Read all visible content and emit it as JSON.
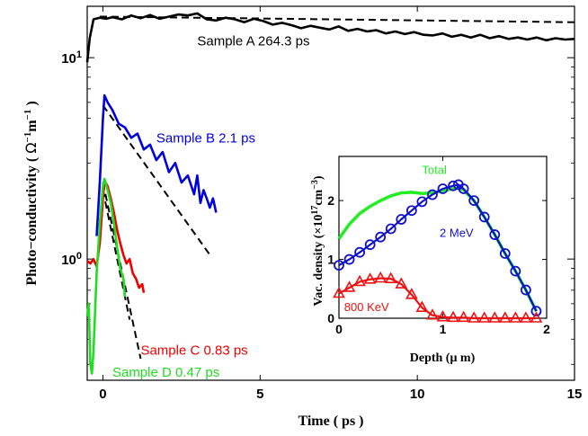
{
  "chart_data": [
    {
      "type": "line",
      "xlabel": "Time ( ps )",
      "ylabel": "Photo-conductivity ( Ω⁻¹m⁻¹ )",
      "ylabel_parts": {
        "pre": "Photo−conductivity ( ",
        "omega": "Ω",
        "sup1": "−1",
        "m": "m",
        "sup2": "−1",
        "post": " )"
      },
      "y_scale": "log",
      "xlim": [
        -0.5,
        15
      ],
      "ylim": [
        0.25,
        18
      ],
      "x_ticks": [
        {
          "value": 0,
          "label": "0"
        },
        {
          "value": 5,
          "label": "5"
        },
        {
          "value": 10,
          "label": "10"
        },
        {
          "value": 15,
          "label": "15"
        }
      ],
      "y_ticks": [
        {
          "value": 1,
          "base": "10",
          "exp": "0"
        },
        {
          "value": 10,
          "base": "10",
          "exp": "1"
        }
      ],
      "series": [
        {
          "color": "#000000",
          "data": [
            [
              -0.5,
              9.5
            ],
            [
              -0.42,
              12.5
            ],
            [
              -0.3,
              15.5
            ],
            [
              -0.1,
              15.8
            ],
            [
              0.1,
              15.6
            ],
            [
              0.3,
              15.9
            ],
            [
              0.6,
              15.5
            ],
            [
              0.9,
              16.2
            ],
            [
              1.2,
              15.7
            ],
            [
              1.5,
              16.3
            ],
            [
              1.8,
              15.6
            ],
            [
              2.1,
              16.0
            ],
            [
              2.4,
              16.4
            ],
            [
              2.7,
              16.2
            ],
            [
              3.0,
              16.6
            ],
            [
              3.3,
              15.5
            ],
            [
              3.6,
              15.3
            ],
            [
              3.9,
              15.8
            ],
            [
              4.2,
              15.5
            ],
            [
              4.5,
              15.0
            ],
            [
              4.8,
              15.6
            ],
            [
              5.1,
              15.2
            ],
            [
              5.4,
              14.6
            ],
            [
              5.7,
              14.9
            ],
            [
              6.0,
              14.5
            ],
            [
              6.3,
              14.0
            ],
            [
              6.6,
              14.4
            ],
            [
              6.9,
              14.1
            ],
            [
              7.2,
              13.8
            ],
            [
              7.5,
              14.3
            ],
            [
              7.8,
              13.6
            ],
            [
              8.1,
              13.9
            ],
            [
              8.4,
              13.5
            ],
            [
              8.7,
              13.7
            ],
            [
              9.0,
              13.2
            ],
            [
              9.3,
              13.5
            ],
            [
              9.6,
              13.1
            ],
            [
              9.9,
              13.4
            ],
            [
              10.2,
              13.0
            ],
            [
              10.5,
              12.9
            ],
            [
              10.8,
              13.2
            ],
            [
              11.1,
              12.7
            ],
            [
              11.4,
              13.0
            ],
            [
              11.7,
              12.6
            ],
            [
              12.0,
              13.0
            ],
            [
              12.3,
              12.5
            ],
            [
              12.6,
              12.8
            ],
            [
              12.9,
              12.4
            ],
            [
              13.2,
              12.6
            ],
            [
              13.5,
              12.3
            ],
            [
              13.8,
              12.6
            ],
            [
              14.1,
              12.2
            ],
            [
              14.4,
              12.5
            ],
            [
              14.7,
              12.3
            ],
            [
              15.0,
              12.4
            ]
          ],
          "fit": [
            [
              -0.1,
              16.0
            ],
            [
              15.0,
              15.0
            ]
          ],
          "annotation": "Sample A 264.3 ps",
          "label_pos": [
            3.0,
            11.5
          ]
        },
        {
          "color": "#0000dd",
          "data": [
            [
              -0.2,
              1.3
            ],
            [
              -0.1,
              2.4
            ],
            [
              0.0,
              5.0
            ],
            [
              0.05,
              6.5
            ],
            [
              0.15,
              6.0
            ],
            [
              0.3,
              5.5
            ],
            [
              0.5,
              4.7
            ],
            [
              0.7,
              4.5
            ],
            [
              0.9,
              4.0
            ],
            [
              1.1,
              4.2
            ],
            [
              1.3,
              3.5
            ],
            [
              1.5,
              3.7
            ],
            [
              1.7,
              3.1
            ],
            [
              1.9,
              3.4
            ],
            [
              2.1,
              2.7
            ],
            [
              2.3,
              3.0
            ],
            [
              2.5,
              2.4
            ],
            [
              2.7,
              2.6
            ],
            [
              2.9,
              2.1
            ],
            [
              3.0,
              2.6
            ],
            [
              3.1,
              1.9
            ],
            [
              3.2,
              2.2
            ],
            [
              3.3,
              2.0
            ],
            [
              3.4,
              1.8
            ],
            [
              3.5,
              2.0
            ],
            [
              3.6,
              1.7
            ]
          ],
          "fit": [
            [
              0.0,
              5.8
            ],
            [
              3.4,
              1.05
            ]
          ],
          "annotation": "Sample B 2.1 ps",
          "label_pos": [
            1.7,
            3.8
          ]
        },
        {
          "color": "#ee0000",
          "data": [
            [
              -0.5,
              0.98
            ],
            [
              -0.4,
              0.95
            ],
            [
              -0.3,
              1.0
            ],
            [
              -0.2,
              0.92
            ],
            [
              -0.1,
              1.2
            ],
            [
              0.0,
              2.0
            ],
            [
              0.05,
              2.45
            ],
            [
              0.15,
              2.3
            ],
            [
              0.25,
              2.0
            ],
            [
              0.35,
              1.7
            ],
            [
              0.45,
              1.4
            ],
            [
              0.55,
              1.2
            ],
            [
              0.65,
              1.05
            ],
            [
              0.75,
              0.95
            ],
            [
              0.85,
              1.0
            ],
            [
              0.95,
              0.85
            ],
            [
              1.05,
              0.8
            ],
            [
              1.15,
              0.72
            ],
            [
              1.25,
              0.75
            ],
            [
              1.3,
              0.68
            ]
          ],
          "fit": [
            [
              0.0,
              2.4
            ],
            [
              1.2,
              0.32
            ]
          ],
          "annotation": "Sample C 0.83 ps",
          "label_pos": [
            1.2,
            0.335
          ]
        },
        {
          "color": "#22dd22",
          "data": [
            [
              -0.5,
              0.52
            ],
            [
              -0.45,
              0.6
            ],
            [
              -0.4,
              0.3
            ],
            [
              -0.35,
              0.27
            ],
            [
              -0.3,
              0.35
            ],
            [
              -0.2,
              0.85
            ],
            [
              -0.1,
              1.5
            ],
            [
              0.0,
              2.3
            ],
            [
              0.05,
              2.5
            ],
            [
              0.15,
              2.2
            ],
            [
              0.25,
              1.9
            ],
            [
              0.35,
              1.5
            ],
            [
              0.45,
              1.15
            ],
            [
              0.55,
              0.9
            ],
            [
              0.65,
              0.8
            ],
            [
              0.7,
              0.65
            ]
          ],
          "fit": [
            [
              0.0,
              2.2
            ],
            [
              0.85,
              0.5
            ]
          ],
          "annotation": "Sample D 0.47 ps",
          "label_pos": [
            0.3,
            0.26
          ]
        }
      ]
    },
    {
      "type": "line",
      "xlabel": "Depth (μ m)",
      "xlabel_text": "Depth (μ m)",
      "ylabel": "Vac. density (×10^17 cm^-3)",
      "ylabel_parts": {
        "pre": "Vac. density (×10",
        "sup1": "17",
        "mid": "cm",
        "sup2": "−3",
        "post": ")"
      },
      "xlim": [
        0,
        2
      ],
      "ylim": [
        0,
        2.75
      ],
      "x_ticks": [
        "0",
        "1",
        "2"
      ],
      "x_tick_values": [
        0,
        1,
        2
      ],
      "y_ticks": [
        "0",
        "1",
        "2"
      ],
      "y_tick_values": [
        0,
        1,
        2
      ],
      "series": [
        {
          "name": "Total",
          "color": "#22ee22",
          "marker": "none",
          "data": [
            [
              0.0,
              1.35
            ],
            [
              0.1,
              1.6
            ],
            [
              0.2,
              1.78
            ],
            [
              0.3,
              1.9
            ],
            [
              0.4,
              2.0
            ],
            [
              0.5,
              2.08
            ],
            [
              0.6,
              2.13
            ],
            [
              0.7,
              2.14
            ],
            [
              0.8,
              2.12
            ],
            [
              0.9,
              2.13
            ],
            [
              1.0,
              2.17
            ],
            [
              1.1,
              2.2
            ],
            [
              1.15,
              2.22
            ],
            [
              1.2,
              2.18
            ],
            [
              1.3,
              2.0
            ],
            [
              1.4,
              1.72
            ],
            [
              1.5,
              1.42
            ],
            [
              1.6,
              1.1
            ],
            [
              1.7,
              0.8
            ],
            [
              1.8,
              0.48
            ],
            [
              1.9,
              0.12
            ]
          ],
          "label_pos": [
            0.8,
            2.45
          ]
        },
        {
          "name": "2 MeV",
          "color": "#1010cc",
          "marker": "circle",
          "data": [
            [
              0.0,
              0.9
            ],
            [
              0.1,
              1.0
            ],
            [
              0.2,
              1.12
            ],
            [
              0.3,
              1.25
            ],
            [
              0.4,
              1.38
            ],
            [
              0.5,
              1.52
            ],
            [
              0.6,
              1.68
            ],
            [
              0.7,
              1.83
            ],
            [
              0.8,
              1.98
            ],
            [
              0.9,
              2.1
            ],
            [
              1.0,
              2.2
            ],
            [
              1.1,
              2.25
            ],
            [
              1.15,
              2.27
            ],
            [
              1.2,
              2.2
            ],
            [
              1.3,
              2.0
            ],
            [
              1.4,
              1.72
            ],
            [
              1.5,
              1.42
            ],
            [
              1.6,
              1.1
            ],
            [
              1.7,
              0.8
            ],
            [
              1.8,
              0.48
            ],
            [
              1.9,
              0.12
            ]
          ],
          "label_pos": [
            0.97,
            1.38
          ]
        },
        {
          "name": "800 KeV",
          "color": "#ee1111",
          "marker": "triangle",
          "data": [
            [
              0.0,
              0.42
            ],
            [
              0.1,
              0.52
            ],
            [
              0.2,
              0.62
            ],
            [
              0.3,
              0.66
            ],
            [
              0.4,
              0.68
            ],
            [
              0.5,
              0.67
            ],
            [
              0.6,
              0.58
            ],
            [
              0.7,
              0.4
            ],
            [
              0.8,
              0.18
            ],
            [
              0.9,
              0.05
            ],
            [
              1.0,
              0.02
            ],
            [
              1.1,
              0.01
            ],
            [
              1.2,
              0.01
            ],
            [
              1.3,
              0.0
            ],
            [
              1.4,
              0.0
            ],
            [
              1.5,
              0.0
            ],
            [
              1.6,
              0.0
            ],
            [
              1.7,
              0.0
            ],
            [
              1.8,
              0.0
            ],
            [
              1.9,
              0.0
            ]
          ],
          "label_pos": [
            0.05,
            0.12
          ]
        }
      ]
    }
  ]
}
